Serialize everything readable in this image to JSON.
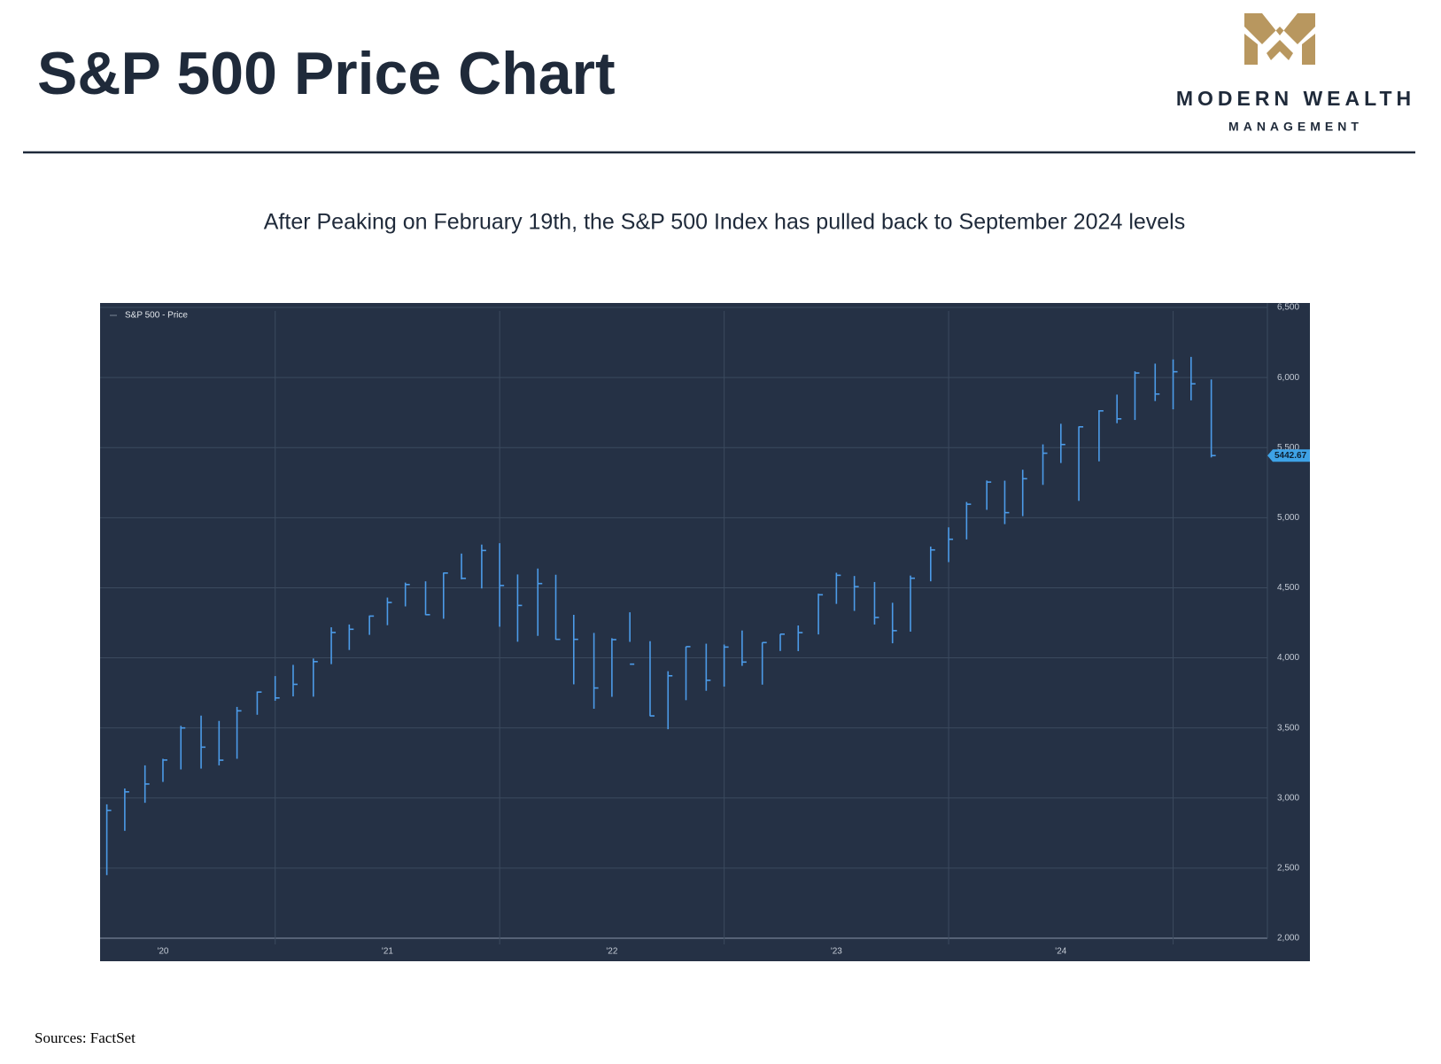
{
  "header": {
    "title": "S&P 500 Price Chart",
    "logo_line1": "MODERN WEALTH",
    "logo_line2": "MANAGEMENT"
  },
  "chart_data": {
    "type": "ohlc",
    "title": "After Peaking on February 19th, the S&P 500 Index has pulled back to September 2024 levels",
    "x": [
      2020.25,
      2020.33,
      2020.42,
      2020.5,
      2020.58,
      2020.67,
      2020.75,
      2020.83,
      2020.92,
      2021.0,
      2021.08,
      2021.17,
      2021.25,
      2021.33,
      2021.42,
      2021.5,
      2021.58,
      2021.67,
      2021.75,
      2021.83,
      2021.92,
      2022.0,
      2022.08,
      2022.17,
      2022.25,
      2022.33,
      2022.42,
      2022.5,
      2022.58,
      2022.67,
      2022.75,
      2022.83,
      2022.92,
      2023.0,
      2023.08,
      2023.17,
      2023.25,
      2023.33,
      2023.42,
      2023.5,
      2023.58,
      2023.67,
      2023.75,
      2023.83,
      2023.92,
      2024.0,
      2024.08,
      2024.17,
      2024.25,
      2024.33,
      2024.42,
      2024.5,
      2024.58,
      2024.67,
      2024.75,
      2024.83,
      2024.92,
      2025.0,
      2025.08,
      2025.17
    ],
    "series": [
      {
        "name": "S&P 500 - Price",
        "color": "#4c9be8",
        "high": [
          2955,
          3068,
          3233,
          3280,
          3515,
          3588,
          3550,
          3650,
          3760,
          3870,
          3950,
          3995,
          4218,
          4238,
          4302,
          4430,
          4537,
          4546,
          4608,
          4744,
          4808,
          4818,
          4595,
          4637,
          4593,
          4307,
          4178,
          4140,
          4325,
          4119,
          3905,
          4080,
          4101,
          4095,
          4195,
          4110,
          4170,
          4231,
          4458,
          4607,
          4584,
          4541,
          4393,
          4587,
          4794,
          4931,
          5112,
          5265,
          5264,
          5342,
          5523,
          5670,
          5651,
          5767,
          5878,
          6044,
          6099,
          6129,
          6147,
          5986
        ],
        "low": [
          2450,
          2766,
          2966,
          3115,
          3204,
          3210,
          3233,
          3280,
          3594,
          3694,
          3725,
          3723,
          3955,
          4056,
          4164,
          4233,
          4367,
          4305,
          4279,
          4560,
          4495,
          4222,
          4115,
          4157,
          4129,
          3811,
          3637,
          3722,
          4114,
          3584,
          3491,
          3698,
          3765,
          3795,
          3943,
          3809,
          4049,
          4048,
          4167,
          4385,
          4335,
          4238,
          4104,
          4187,
          4546,
          4683,
          4845,
          5056,
          4954,
          5011,
          5234,
          5390,
          5120,
          5402,
          5674,
          5697,
          5832,
          5773,
          5837,
          5430
        ],
        "close": [
          2912,
          3044,
          3100,
          3271,
          3500,
          3363,
          3270,
          3622,
          3756,
          3714,
          3811,
          3973,
          4181,
          4204,
          4298,
          4395,
          4523,
          4308,
          4605,
          4567,
          4766,
          4516,
          4374,
          4530,
          4132,
          4132,
          3785,
          4130,
          3955,
          3586,
          3872,
          4080,
          3840,
          4077,
          3970,
          4109,
          4169,
          4180,
          4450,
          4589,
          4508,
          4288,
          4194,
          4568,
          4770,
          4846,
          5096,
          5254,
          5036,
          5278,
          5460,
          5522,
          5648,
          5762,
          5705,
          6032,
          5882,
          6041,
          5955,
          5443
        ]
      }
    ],
    "last_price": 5442.67,
    "xlim": [
      2020.22,
      2025.42
    ],
    "xticks": [
      {
        "value": 2020.5,
        "label": "'20"
      },
      {
        "value": 2021.5,
        "label": "'21"
      },
      {
        "value": 2022.5,
        "label": "'22"
      },
      {
        "value": 2023.5,
        "label": "'23"
      },
      {
        "value": 2024.5,
        "label": "'24"
      }
    ],
    "xgrid": [
      2021,
      2022,
      2023,
      2024,
      2025
    ],
    "ylim": [
      2000,
      6500
    ],
    "yticks": [
      {
        "value": 2000,
        "label": "2,000"
      },
      {
        "value": 2500,
        "label": "2,500"
      },
      {
        "value": 3000,
        "label": "3,000"
      },
      {
        "value": 3500,
        "label": "3,500"
      },
      {
        "value": 4000,
        "label": "4,000"
      },
      {
        "value": 4500,
        "label": "4,500"
      },
      {
        "value": 5000,
        "label": "5,000"
      },
      {
        "value": 5500,
        "label": "5,500"
      },
      {
        "value": 6000,
        "label": "6,000"
      },
      {
        "value": 6500,
        "label": "6,500"
      }
    ],
    "grid": true,
    "legend": "upper left"
  },
  "footer": {
    "source": "Sources: FactSet"
  }
}
